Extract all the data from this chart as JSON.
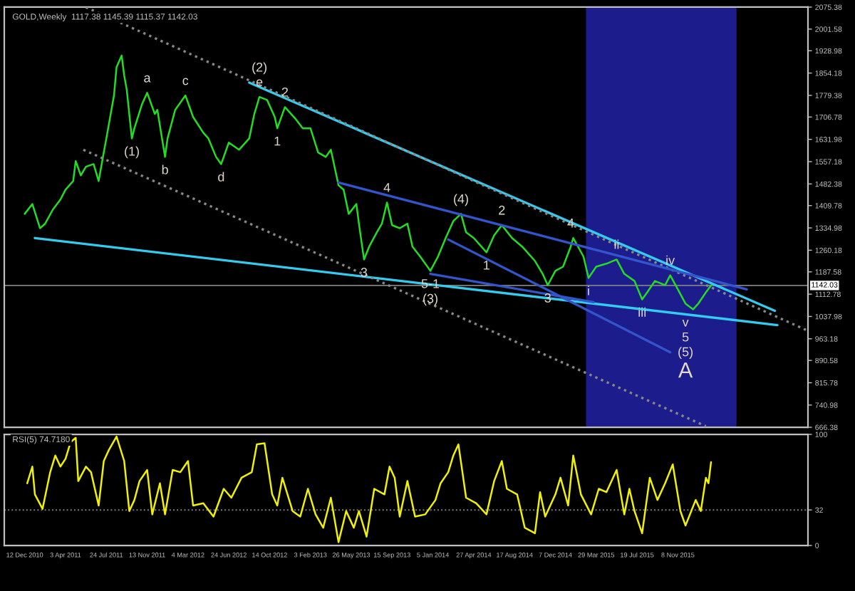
{
  "chart_data": [
    {
      "type": "line",
      "title": "GOLD,Weekly  1117.38 1145.39 1115.37 1142.03",
      "legend": false,
      "grid": false,
      "tick_labels": "y",
      "xlim": [
        "2010-10-17",
        "2016-10-30"
      ],
      "ylim": [
        666.38,
        2075.38
      ],
      "yticks": [
        2075.38,
        2001.58,
        1928.98,
        1854.18,
        1779.38,
        1706.78,
        1631.98,
        1557.18,
        1482.38,
        1409.78,
        1334.98,
        1260.18,
        1187.58,
        1112.78,
        1037.98,
        963.18,
        890.58,
        815.78,
        740.98,
        666.38
      ],
      "bands": [
        {
          "axis": "x",
          "from": "2015-03-01",
          "to": "2016-04-17",
          "color": "#1c1c8c"
        }
      ],
      "ref_lines": [
        {
          "axis": "y",
          "value": 1142.03,
          "label": "1142.03",
          "color": "#808080",
          "line_style": "solid"
        }
      ],
      "series": [
        {
          "color": "#22dd22",
          "line_style": "solid",
          "x": [
            "2010-12-12",
            "2011-01-02",
            "2011-01-23",
            "2011-02-06",
            "2011-02-27",
            "2011-03-20",
            "2011-04-03",
            "2011-04-24",
            "2011-05-01",
            "2011-05-15",
            "2011-05-29",
            "2011-06-19",
            "2011-07-03",
            "2011-07-17",
            "2011-07-24",
            "2011-08-14",
            "2011-08-21",
            "2011-09-04",
            "2011-09-11",
            "2011-09-18",
            "2011-10-02",
            "2011-10-09",
            "2011-10-30",
            "2011-11-13",
            "2011-12-04",
            "2011-12-11",
            "2012-01-01",
            "2012-01-08",
            "2012-01-29",
            "2012-02-26",
            "2012-03-18",
            "2012-04-15",
            "2012-04-29",
            "2012-05-20",
            "2012-06-03",
            "2012-06-24",
            "2012-07-22",
            "2012-08-19",
            "2012-09-02",
            "2012-09-16",
            "2012-10-07",
            "2012-10-28",
            "2012-11-04",
            "2012-11-25",
            "2012-12-23",
            "2013-01-13",
            "2013-02-03",
            "2013-02-24",
            "2013-03-17",
            "2013-03-31",
            "2013-04-21",
            "2013-05-05",
            "2013-05-19",
            "2013-06-09",
            "2013-06-16",
            "2013-06-30",
            "2013-07-14",
            "2013-08-04",
            "2013-08-18",
            "2013-09-01",
            "2013-09-15",
            "2013-10-06",
            "2013-10-27",
            "2013-11-10",
            "2013-12-01",
            "2013-12-29",
            "2014-01-19",
            "2014-02-09",
            "2014-03-02",
            "2014-03-23",
            "2014-04-06",
            "2014-04-27",
            "2014-06-01",
            "2014-06-22",
            "2014-07-13",
            "2014-08-10",
            "2014-09-07",
            "2014-10-12",
            "2014-11-02",
            "2014-11-16",
            "2014-12-07",
            "2014-12-28",
            "2015-01-18",
            "2015-01-25",
            "2015-02-22",
            "2015-03-08",
            "2015-03-29",
            "2015-04-26",
            "2015-05-24",
            "2015-06-14",
            "2015-07-12",
            "2015-08-02",
            "2015-08-16",
            "2015-09-06",
            "2015-10-04",
            "2015-10-18",
            "2015-11-08",
            "2015-11-29",
            "2015-12-20",
            "2016-01-03",
            "2016-01-24",
            "2016-02-07"
          ],
          "values": [
            1382,
            1415,
            1334,
            1349,
            1396,
            1430,
            1463,
            1492,
            1559,
            1511,
            1540,
            1549,
            1492,
            1588,
            1635,
            1779,
            1874,
            1913,
            1846,
            1798,
            1635,
            1669,
            1750,
            1788,
            1717,
            1731,
            1573,
            1635,
            1731,
            1779,
            1707,
            1654,
            1635,
            1573,
            1549,
            1621,
            1597,
            1635,
            1717,
            1774,
            1764,
            1707,
            1669,
            1740,
            1702,
            1669,
            1669,
            1588,
            1573,
            1597,
            1478,
            1463,
            1382,
            1415,
            1349,
            1229,
            1272,
            1320,
            1349,
            1420,
            1344,
            1334,
            1349,
            1272,
            1239,
            1191,
            1239,
            1301,
            1358,
            1382,
            1320,
            1301,
            1253,
            1310,
            1344,
            1301,
            1272,
            1224,
            1181,
            1143,
            1191,
            1205,
            1272,
            1301,
            1239,
            1167,
            1205,
            1215,
            1229,
            1181,
            1157,
            1095,
            1119,
            1157,
            1143,
            1176,
            1129,
            1081,
            1062,
            1081,
            1119,
            1142
          ]
        },
        {
          "color": "#33ccee",
          "line_style": "solid",
          "x": [
            "2012-08-19",
            "2016-07-31"
          ],
          "values": [
            1822,
            1057
          ]
        },
        {
          "color": "#33ccee",
          "line_style": "solid",
          "x": [
            "2011-01-09",
            "2016-08-07"
          ],
          "values": [
            1301,
            1009
          ]
        },
        {
          "color": "#888888",
          "line_style": "dotted",
          "x": [
            "2011-05-29",
            "2016-10-30"
          ],
          "values": [
            2075,
            990
          ]
        },
        {
          "color": "#888888",
          "line_style": "dotted",
          "x": [
            "2011-05-22",
            "2016-01-24"
          ],
          "values": [
            1597,
            670
          ]
        },
        {
          "color": "#3355cc",
          "line_style": "solid",
          "x": [
            "2013-04-21",
            "2016-05-15"
          ],
          "values": [
            1487,
            1129
          ]
        },
        {
          "color": "#3355cc",
          "line_style": "solid",
          "x": [
            "2014-02-16",
            "2015-10-18"
          ],
          "values": [
            1296,
            918
          ]
        },
        {
          "color": "#3355cc",
          "line_style": "solid",
          "x": [
            "2013-12-29",
            "2015-03-22"
          ],
          "values": [
            1181,
            1086
          ]
        }
      ],
      "annotations": [
        {
          "text": "(1)",
          "x": "2011-10-02",
          "y": 1635
        },
        {
          "text": "a",
          "x": "2011-11-13",
          "y": 1788
        },
        {
          "text": "b",
          "x": "2012-01-01",
          "y": 1573
        },
        {
          "text": "c",
          "x": "2012-02-26",
          "y": 1779
        },
        {
          "text": "d",
          "x": "2012-06-03",
          "y": 1549
        },
        {
          "text": "e",
          "x": "2012-09-16",
          "y": 1774
        },
        {
          "text": "(2)",
          "x": "2012-09-16",
          "y": 1774
        },
        {
          "text": "1",
          "x": "2012-11-04",
          "y": 1669
        },
        {
          "text": "2",
          "x": "2012-11-25",
          "y": 1740
        },
        {
          "text": "3",
          "x": "2013-06-30",
          "y": 1229
        },
        {
          "text": "4",
          "x": "2013-09-01",
          "y": 1420
        },
        {
          "text": "5-1",
          "x": "2013-12-29",
          "y": 1191
        },
        {
          "text": "(3)",
          "x": "2013-12-29",
          "y": 1191
        },
        {
          "text": "(4)",
          "x": "2014-03-23",
          "y": 1382
        },
        {
          "text": "2",
          "x": "2014-07-13",
          "y": 1344
        },
        {
          "text": "1",
          "x": "2014-06-01",
          "y": 1253
        },
        {
          "text": "3",
          "x": "2014-11-16",
          "y": 1143
        },
        {
          "text": "4",
          "x": "2015-01-18",
          "y": 1301
        },
        {
          "text": "i",
          "x": "2015-03-08",
          "y": 1167
        },
        {
          "text": "ii",
          "x": "2015-05-24",
          "y": 1229
        },
        {
          "text": "iii",
          "x": "2015-08-02",
          "y": 1095
        },
        {
          "text": "iv",
          "x": "2015-10-18",
          "y": 1176
        },
        {
          "text": "v",
          "x": "2015-11-29",
          "y": 1062
        },
        {
          "text": "5",
          "x": "2015-11-29",
          "y": 1062
        },
        {
          "text": "(5)",
          "x": "2015-11-29",
          "y": 1062
        },
        {
          "text": "A",
          "x": "2015-11-29",
          "y": 1062
        }
      ]
    },
    {
      "type": "line",
      "title": "RSI(5) 74.7180",
      "legend": false,
      "grid": false,
      "xlim": [
        "2010-10-17",
        "2016-10-30"
      ],
      "ylim": [
        0,
        100
      ],
      "yticks": [
        100,
        32,
        0
      ],
      "xticks": [
        {
          "value": "2010-12-12",
          "label": "12 Dec 2010"
        },
        {
          "value": "2011-04-03",
          "label": "3 Apr 2011"
        },
        {
          "value": "2011-07-24",
          "label": "24 Jul 2011"
        },
        {
          "value": "2011-11-13",
          "label": "13 Nov 2011"
        },
        {
          "value": "2012-03-04",
          "label": "4 Mar 2012"
        },
        {
          "value": "2012-06-24",
          "label": "24 Jun 2012"
        },
        {
          "value": "2012-10-14",
          "label": "14 Oct 2012"
        },
        {
          "value": "2013-02-03",
          "label": "3 Feb 2013"
        },
        {
          "value": "2013-05-26",
          "label": "26 May 2013"
        },
        {
          "value": "2013-09-15",
          "label": "15 Sep 2013"
        },
        {
          "value": "2014-01-05",
          "label": "5 Jan 2014"
        },
        {
          "value": "2014-04-27",
          "label": "27 Apr 2014"
        },
        {
          "value": "2014-08-17",
          "label": "17 Aug 2014"
        },
        {
          "value": "2014-12-07",
          "label": "7 Dec 2014"
        },
        {
          "value": "2015-03-29",
          "label": "29 Mar 2015"
        },
        {
          "value": "2015-07-19",
          "label": "19 Jul 2015"
        },
        {
          "value": "2015-11-08",
          "label": "8 Nov 2015"
        }
      ],
      "ref_lines": [
        {
          "axis": "y",
          "value": 32,
          "color": "#808080",
          "line_style": "dotted"
        }
      ],
      "series": [
        {
          "color": "#f0f000",
          "line_style": "solid",
          "x": [
            "2010-12-19",
            "2011-01-02",
            "2011-01-09",
            "2011-01-30",
            "2011-02-20",
            "2011-03-06",
            "2011-03-20",
            "2011-04-03",
            "2011-04-17",
            "2011-05-01",
            "2011-05-08",
            "2011-05-29",
            "2011-06-12",
            "2011-07-03",
            "2011-07-17",
            "2011-07-31",
            "2011-08-21",
            "2011-09-11",
            "2011-09-25",
            "2011-10-09",
            "2011-10-23",
            "2011-11-13",
            "2011-11-27",
            "2011-12-18",
            "2012-01-01",
            "2012-01-22",
            "2012-02-12",
            "2012-03-04",
            "2012-03-18",
            "2012-04-15",
            "2012-05-13",
            "2012-06-10",
            "2012-07-01",
            "2012-07-29",
            "2012-08-26",
            "2012-09-09",
            "2012-09-30",
            "2012-10-21",
            "2012-11-04",
            "2012-11-18",
            "2012-12-16",
            "2013-01-06",
            "2013-01-27",
            "2013-02-17",
            "2013-03-10",
            "2013-03-31",
            "2013-04-21",
            "2013-05-12",
            "2013-06-02",
            "2013-06-16",
            "2013-07-07",
            "2013-07-28",
            "2013-08-25",
            "2013-09-08",
            "2013-09-22",
            "2013-10-06",
            "2013-10-27",
            "2013-11-17",
            "2013-12-15",
            "2014-01-12",
            "2014-01-26",
            "2014-02-16",
            "2014-03-02",
            "2014-03-16",
            "2014-04-06",
            "2014-05-04",
            "2014-06-01",
            "2014-06-22",
            "2014-07-13",
            "2014-07-27",
            "2014-08-24",
            "2014-09-14",
            "2014-10-12",
            "2014-10-26",
            "2014-11-09",
            "2014-12-07",
            "2014-12-21",
            "2015-01-11",
            "2015-01-25",
            "2015-02-15",
            "2015-03-15",
            "2015-04-05",
            "2015-04-26",
            "2015-05-24",
            "2015-06-14",
            "2015-06-28",
            "2015-07-12",
            "2015-08-02",
            "2015-08-23",
            "2015-09-13",
            "2015-10-04",
            "2015-10-25",
            "2015-11-15",
            "2015-11-29",
            "2015-12-27",
            "2016-01-10",
            "2016-01-24",
            "2016-01-31",
            "2016-02-07"
          ],
          "values": [
            56,
            71,
            46,
            33,
            66,
            81,
            71,
            78,
            93,
            97,
            58,
            71,
            66,
            36,
            76,
            86,
            98,
            76,
            31,
            41,
            58,
            68,
            28,
            56,
            28,
            68,
            66,
            76,
            36,
            38,
            26,
            51,
            43,
            61,
            66,
            91,
            92,
            46,
            36,
            61,
            31,
            26,
            51,
            28,
            16,
            43,
            3,
            31,
            16,
            31,
            8,
            51,
            46,
            71,
            61,
            26,
            58,
            26,
            28,
            41,
            56,
            66,
            81,
            91,
            43,
            38,
            28,
            58,
            76,
            51,
            46,
            16,
            11,
            48,
            26,
            46,
            61,
            36,
            81,
            46,
            28,
            51,
            48,
            68,
            28,
            51,
            31,
            11,
            61,
            41,
            56,
            73,
            31,
            18,
            41,
            31,
            61,
            56,
            75
          ]
        }
      ]
    }
  ]
}
